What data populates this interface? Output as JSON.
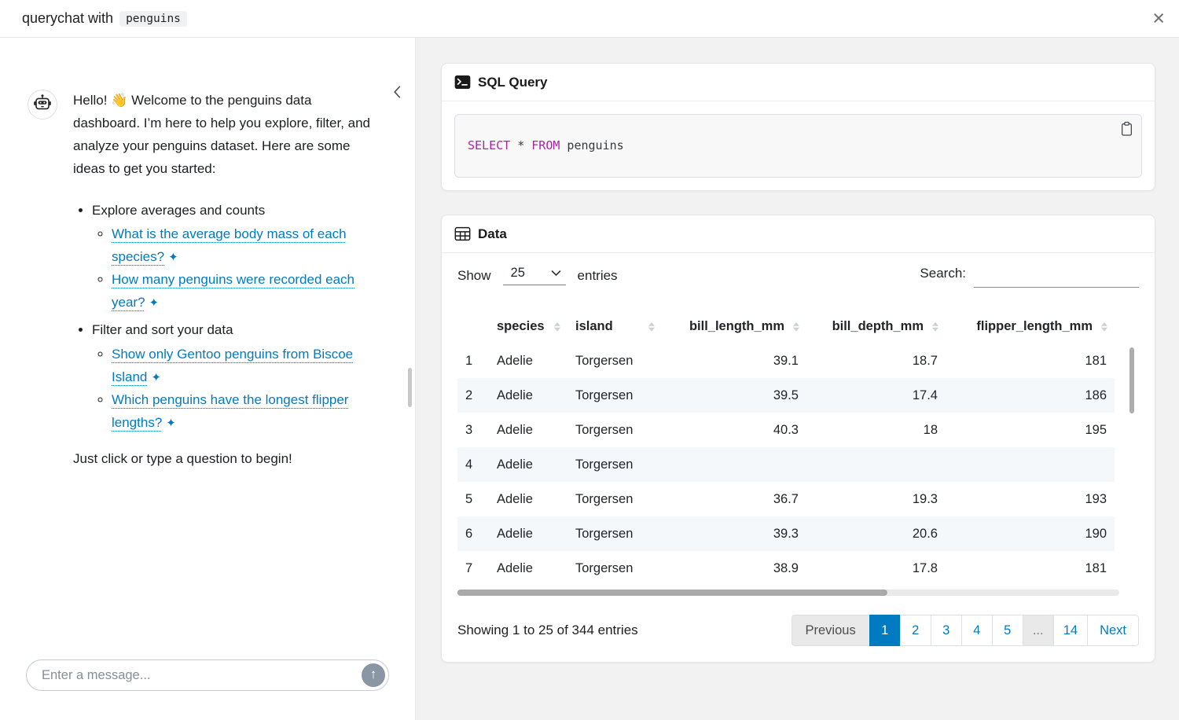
{
  "topbar": {
    "title_prefix": "querychat with",
    "title_code": "penguins",
    "close_label": "×"
  },
  "chat": {
    "greeting": "Hello! 👋 Welcome to the penguins data dashboard. I’m here to help you explore, filter, and analyze your penguins dataset. Here are some ideas to get you started:",
    "suggestion_groups": [
      {
        "label": "Explore averages and counts",
        "links": [
          "What is the average body mass of each species?",
          "How many penguins were recorded each year?"
        ]
      },
      {
        "label": "Filter and sort your data",
        "links": [
          "Show only Gentoo penguins from Biscoe Island",
          "Which penguins have the longest flipper lengths?"
        ]
      }
    ],
    "closing": "Just click or type a question to begin!",
    "input_placeholder": "Enter a message...",
    "send_icon": "↑",
    "sparkle_icon": "✦"
  },
  "sql_card": {
    "title": "SQL Query",
    "code_tokens": [
      {
        "text": "SELECT",
        "type": "keyword"
      },
      {
        "text": " * ",
        "type": "plain"
      },
      {
        "text": "FROM",
        "type": "keyword"
      },
      {
        "text": " penguins",
        "type": "plain"
      }
    ]
  },
  "data_card": {
    "title": "Data",
    "show_label": "Show",
    "page_length": "25",
    "entries_label": "entries",
    "search_label": "Search:",
    "search_value": "",
    "table": {
      "columns": [
        "species",
        "island",
        "bill_length_mm",
        "bill_depth_mm",
        "flipper_length_mm"
      ],
      "numeric_columns": [
        "bill_length_mm",
        "bill_depth_mm",
        "flipper_length_mm"
      ],
      "rows": [
        [
          "1",
          "Adelie",
          "Torgersen",
          "39.1",
          "18.7",
          "181"
        ],
        [
          "2",
          "Adelie",
          "Torgersen",
          "39.5",
          "17.4",
          "186"
        ],
        [
          "3",
          "Adelie",
          "Torgersen",
          "40.3",
          "18",
          "195"
        ],
        [
          "4",
          "Adelie",
          "Torgersen",
          "",
          "",
          ""
        ],
        [
          "5",
          "Adelie",
          "Torgersen",
          "36.7",
          "19.3",
          "193"
        ],
        [
          "6",
          "Adelie",
          "Torgersen",
          "39.3",
          "20.6",
          "190"
        ],
        [
          "7",
          "Adelie",
          "Torgersen",
          "38.9",
          "17.8",
          "181"
        ]
      ]
    },
    "info": "Showing 1 to 25 of 344 entries",
    "pagination": [
      {
        "label": "Previous",
        "state": "disabled"
      },
      {
        "label": "1",
        "state": "active"
      },
      {
        "label": "2",
        "state": "page"
      },
      {
        "label": "3",
        "state": "page"
      },
      {
        "label": "4",
        "state": "page"
      },
      {
        "label": "5",
        "state": "page"
      },
      {
        "label": "...",
        "state": "ellipsis"
      },
      {
        "label": "14",
        "state": "page"
      },
      {
        "label": "Next",
        "state": "page"
      }
    ]
  },
  "colors": {
    "primary": "#007bc2",
    "keyword": "#a626a4",
    "stripe": "#f4f8fb",
    "panel_bg": "#f2f2f2"
  }
}
